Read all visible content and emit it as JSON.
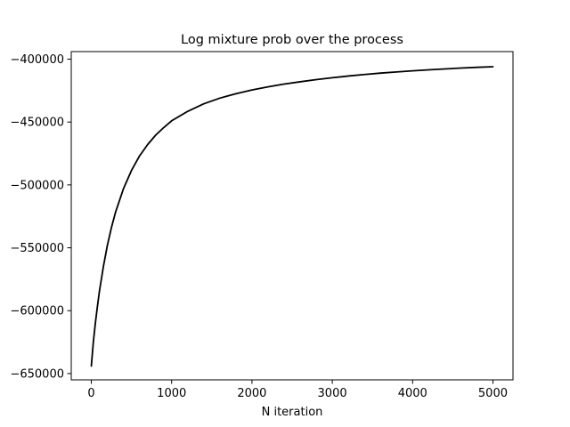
{
  "chart_data": {
    "type": "line",
    "title": "Log mixture prob over the process",
    "xlabel": "N iteration",
    "ylabel": "",
    "xlim": [
      -250,
      5250
    ],
    "ylim": [
      -655000,
      -394000
    ],
    "x_ticks": [
      0,
      1000,
      2000,
      3000,
      4000,
      5000
    ],
    "y_ticks": [
      -650000,
      -600000,
      -550000,
      -500000,
      -450000,
      -400000
    ],
    "x_tick_labels": [
      "0",
      "1000",
      "2000",
      "3000",
      "4000",
      "5000"
    ],
    "y_tick_labels": [
      "−650000",
      "−600000",
      "−550000",
      "−500000",
      "−450000",
      "−400000"
    ],
    "grid": false,
    "series": [
      {
        "color": "#000000",
        "x": [
          0,
          25,
          50,
          75,
          100,
          150,
          200,
          250,
          300,
          400,
          500,
          600,
          700,
          800,
          900,
          1000,
          1200,
          1400,
          1600,
          1800,
          2000,
          2200,
          2400,
          2600,
          2800,
          3000,
          3200,
          3400,
          3600,
          3800,
          4000,
          4200,
          4400,
          4600,
          4800,
          5000
        ],
        "y": [
          -644000,
          -625000,
          -610000,
          -597000,
          -585000,
          -565000,
          -548000,
          -534000,
          -522000,
          -503000,
          -488500,
          -477000,
          -468000,
          -460500,
          -454500,
          -449000,
          -441500,
          -435500,
          -431000,
          -427500,
          -424500,
          -422000,
          -419800,
          -418000,
          -416300,
          -414800,
          -413400,
          -412200,
          -411100,
          -410200,
          -409300,
          -408500,
          -407800,
          -407100,
          -406500,
          -406000
        ]
      }
    ]
  }
}
